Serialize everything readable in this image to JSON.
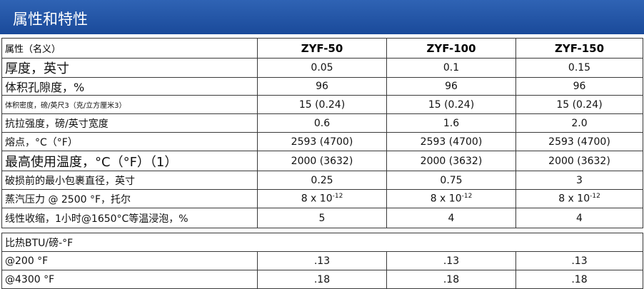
{
  "title": "属性和特性",
  "table": {
    "headers": [
      "属性（名义）",
      "ZYF-50",
      "ZYF-100",
      "ZYF-150"
    ],
    "rows": [
      [
        "厚度，英寸",
        "0.05",
        "0.1",
        "0.15"
      ],
      [
        "体积孔隙度，%",
        "96",
        "96",
        "96"
      ],
      [
        "体积密度，磅/英尺3（克/立方厘米3）",
        "15 (0.24)",
        "15 (0.24)",
        "15 (0.24)"
      ],
      [
        "抗拉强度，磅/英寸宽度",
        "0.6",
        "1.6",
        "2.0"
      ],
      [
        "熔点，°C（°F）",
        "2593 (4700)",
        "2593 (4700)",
        "2593 (4700)"
      ],
      [
        "最高使用温度，°C（°F）（1）",
        "2000 (3632)",
        "2000 (3632)",
        "2000 (3632)"
      ],
      [
        "破损前的最小包裹直径，英寸",
        "0.25",
        "0.75",
        "3"
      ],
      [
        "蒸汽压力 @ 2500 °F，托尔",
        {
          "text": "8 x 10",
          "sup": "-12"
        },
        {
          "text": "8 x 10",
          "sup": "-12"
        },
        {
          "text": "8 x 10",
          "sup": "-12"
        }
      ],
      [
        "线性收缩，1小时@1650°C等温浸泡，%",
        "5",
        "4",
        "4"
      ]
    ]
  },
  "specific_heat": {
    "label": "比热BTU/磅-°F",
    "rows": [
      [
        "@200 °F",
        ".13",
        ".13",
        ".13"
      ],
      [
        "@4300 °F",
        ".18",
        ".18",
        ".18"
      ]
    ]
  }
}
